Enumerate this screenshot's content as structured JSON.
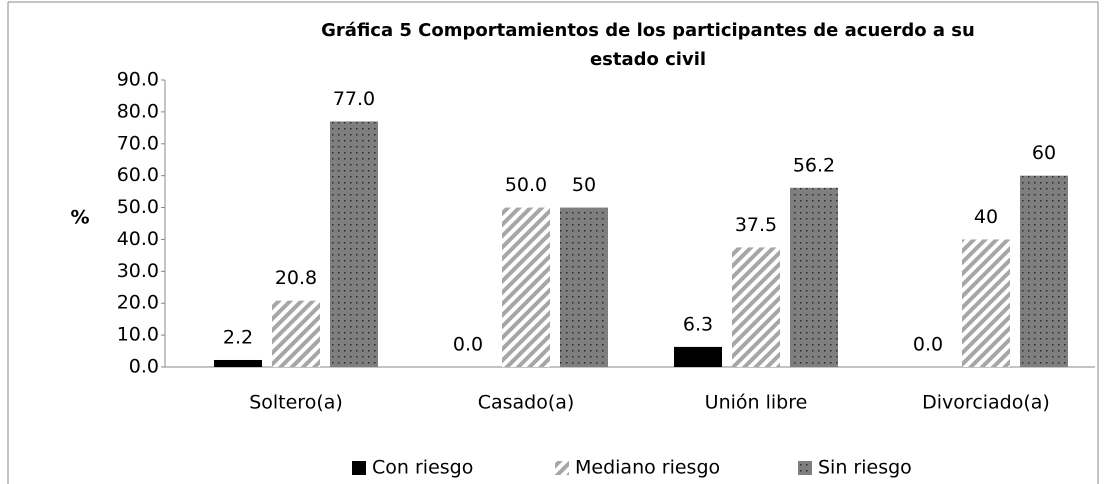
{
  "chart_data": {
    "type": "bar",
    "title": [
      "Gráfica  5 Comportamientos de los participantes de acuerdo a su",
      "estado civil"
    ],
    "y_label": "%",
    "categories": [
      "Soltero(a)",
      "Casado(a)",
      "Unión libre",
      "Divorciado(a)"
    ],
    "series": [
      {
        "name": "Con riesgo",
        "color": "#000000",
        "pattern": "solid",
        "values": [
          2.2,
          0,
          6.3,
          0
        ],
        "value_labels": [
          "2.2",
          "0.0",
          "6.3",
          "0.0"
        ]
      },
      {
        "name": "Mediano riesgo",
        "color": "#a6a6a6",
        "pattern": "stripes",
        "values": [
          20.8,
          50,
          37.5,
          40
        ],
        "value_labels": [
          "20.8",
          "50.0",
          "37.5",
          "40"
        ]
      },
      {
        "name": "Sin riesgo",
        "color": "#7f7f7f",
        "pattern": "dots",
        "values": [
          77,
          50,
          56.2,
          60
        ],
        "value_labels": [
          "77.0",
          "50",
          "56.2",
          "60"
        ]
      }
    ],
    "ylim": [
      0,
      90
    ],
    "yticks": [
      {
        "value": 0,
        "label": "0.0"
      },
      {
        "value": 10,
        "label": "10.0"
      },
      {
        "value": 20,
        "label": "20.0"
      },
      {
        "value": 30,
        "label": "30.0"
      },
      {
        "value": 40,
        "label": "40.0"
      },
      {
        "value": 50,
        "label": "50.0"
      },
      {
        "value": 60,
        "label": "60.0"
      },
      {
        "value": 70,
        "label": "70.0"
      },
      {
        "value": 80,
        "label": "80.0"
      },
      {
        "value": 90,
        "label": "90.0"
      }
    ],
    "grid": false,
    "legend": "bottom"
  }
}
